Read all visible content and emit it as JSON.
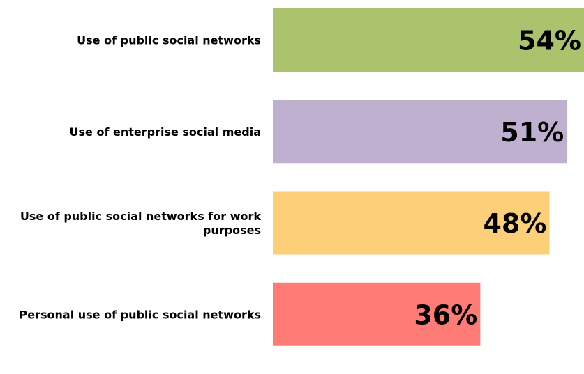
{
  "chart_data": {
    "type": "bar",
    "orientation": "horizontal",
    "title": "",
    "xlabel": "",
    "ylabel": "",
    "grid": false,
    "xlim": [
      0,
      54
    ],
    "categories": [
      "Use of public social networks",
      "Use of enterprise social media",
      "Use of public social networks for work purposes",
      "Personal use of public social networks"
    ],
    "category_lines": [
      [
        "Use of public social networks"
      ],
      [
        "Use of enterprise social media"
      ],
      [
        "Use of public social networks for work",
        "purposes"
      ],
      [
        "Personal use of public social networks"
      ]
    ],
    "values": [
      54,
      51,
      48,
      36
    ],
    "value_labels": [
      "54%",
      "51%",
      "48%",
      "36%"
    ],
    "colors": [
      "#abc36c",
      "#bfb0cf",
      "#fdcf78",
      "#ff7b76"
    ]
  }
}
